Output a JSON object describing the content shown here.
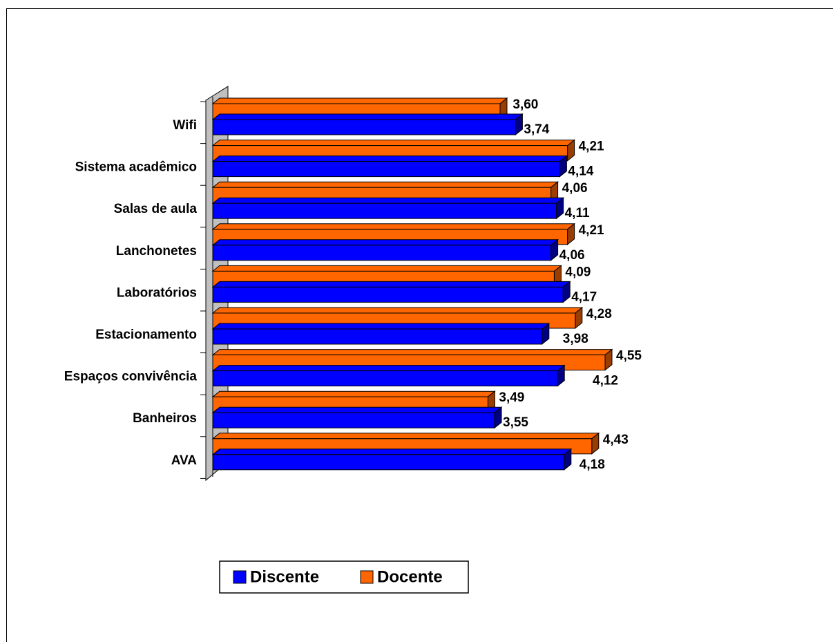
{
  "chart_data": {
    "type": "bar3d-horizontal",
    "categories": [
      "Wifi",
      "Sistema acadêmico",
      "Salas de aula",
      "Lanchonetes",
      "Laboratórios",
      "Estacionamento",
      "Espaços convivência",
      "Banheiros",
      "AVA"
    ],
    "series": [
      {
        "name": "Discente",
        "color": "#0000ff",
        "side_color": "#000080",
        "values": [
          3.74,
          4.14,
          4.11,
          4.06,
          4.17,
          3.98,
          4.12,
          3.55,
          4.18
        ],
        "value_labels": [
          "3,74",
          "4,14",
          "4,11",
          "4,06",
          "4,17",
          "3,98",
          "4,12",
          "3,55",
          "4,18"
        ]
      },
      {
        "name": "Docente",
        "color": "#ff6600",
        "side_color": "#993d00",
        "values": [
          3.6,
          4.21,
          4.06,
          4.21,
          4.09,
          4.28,
          4.55,
          3.49,
          4.43
        ],
        "value_labels": [
          "3,60",
          "4,21",
          "4,06",
          "4,21",
          "4,09",
          "4,28",
          "4,55",
          "3,49",
          "4,43"
        ]
      }
    ],
    "xlim": [
      1,
      5
    ],
    "legend": "bottom"
  }
}
